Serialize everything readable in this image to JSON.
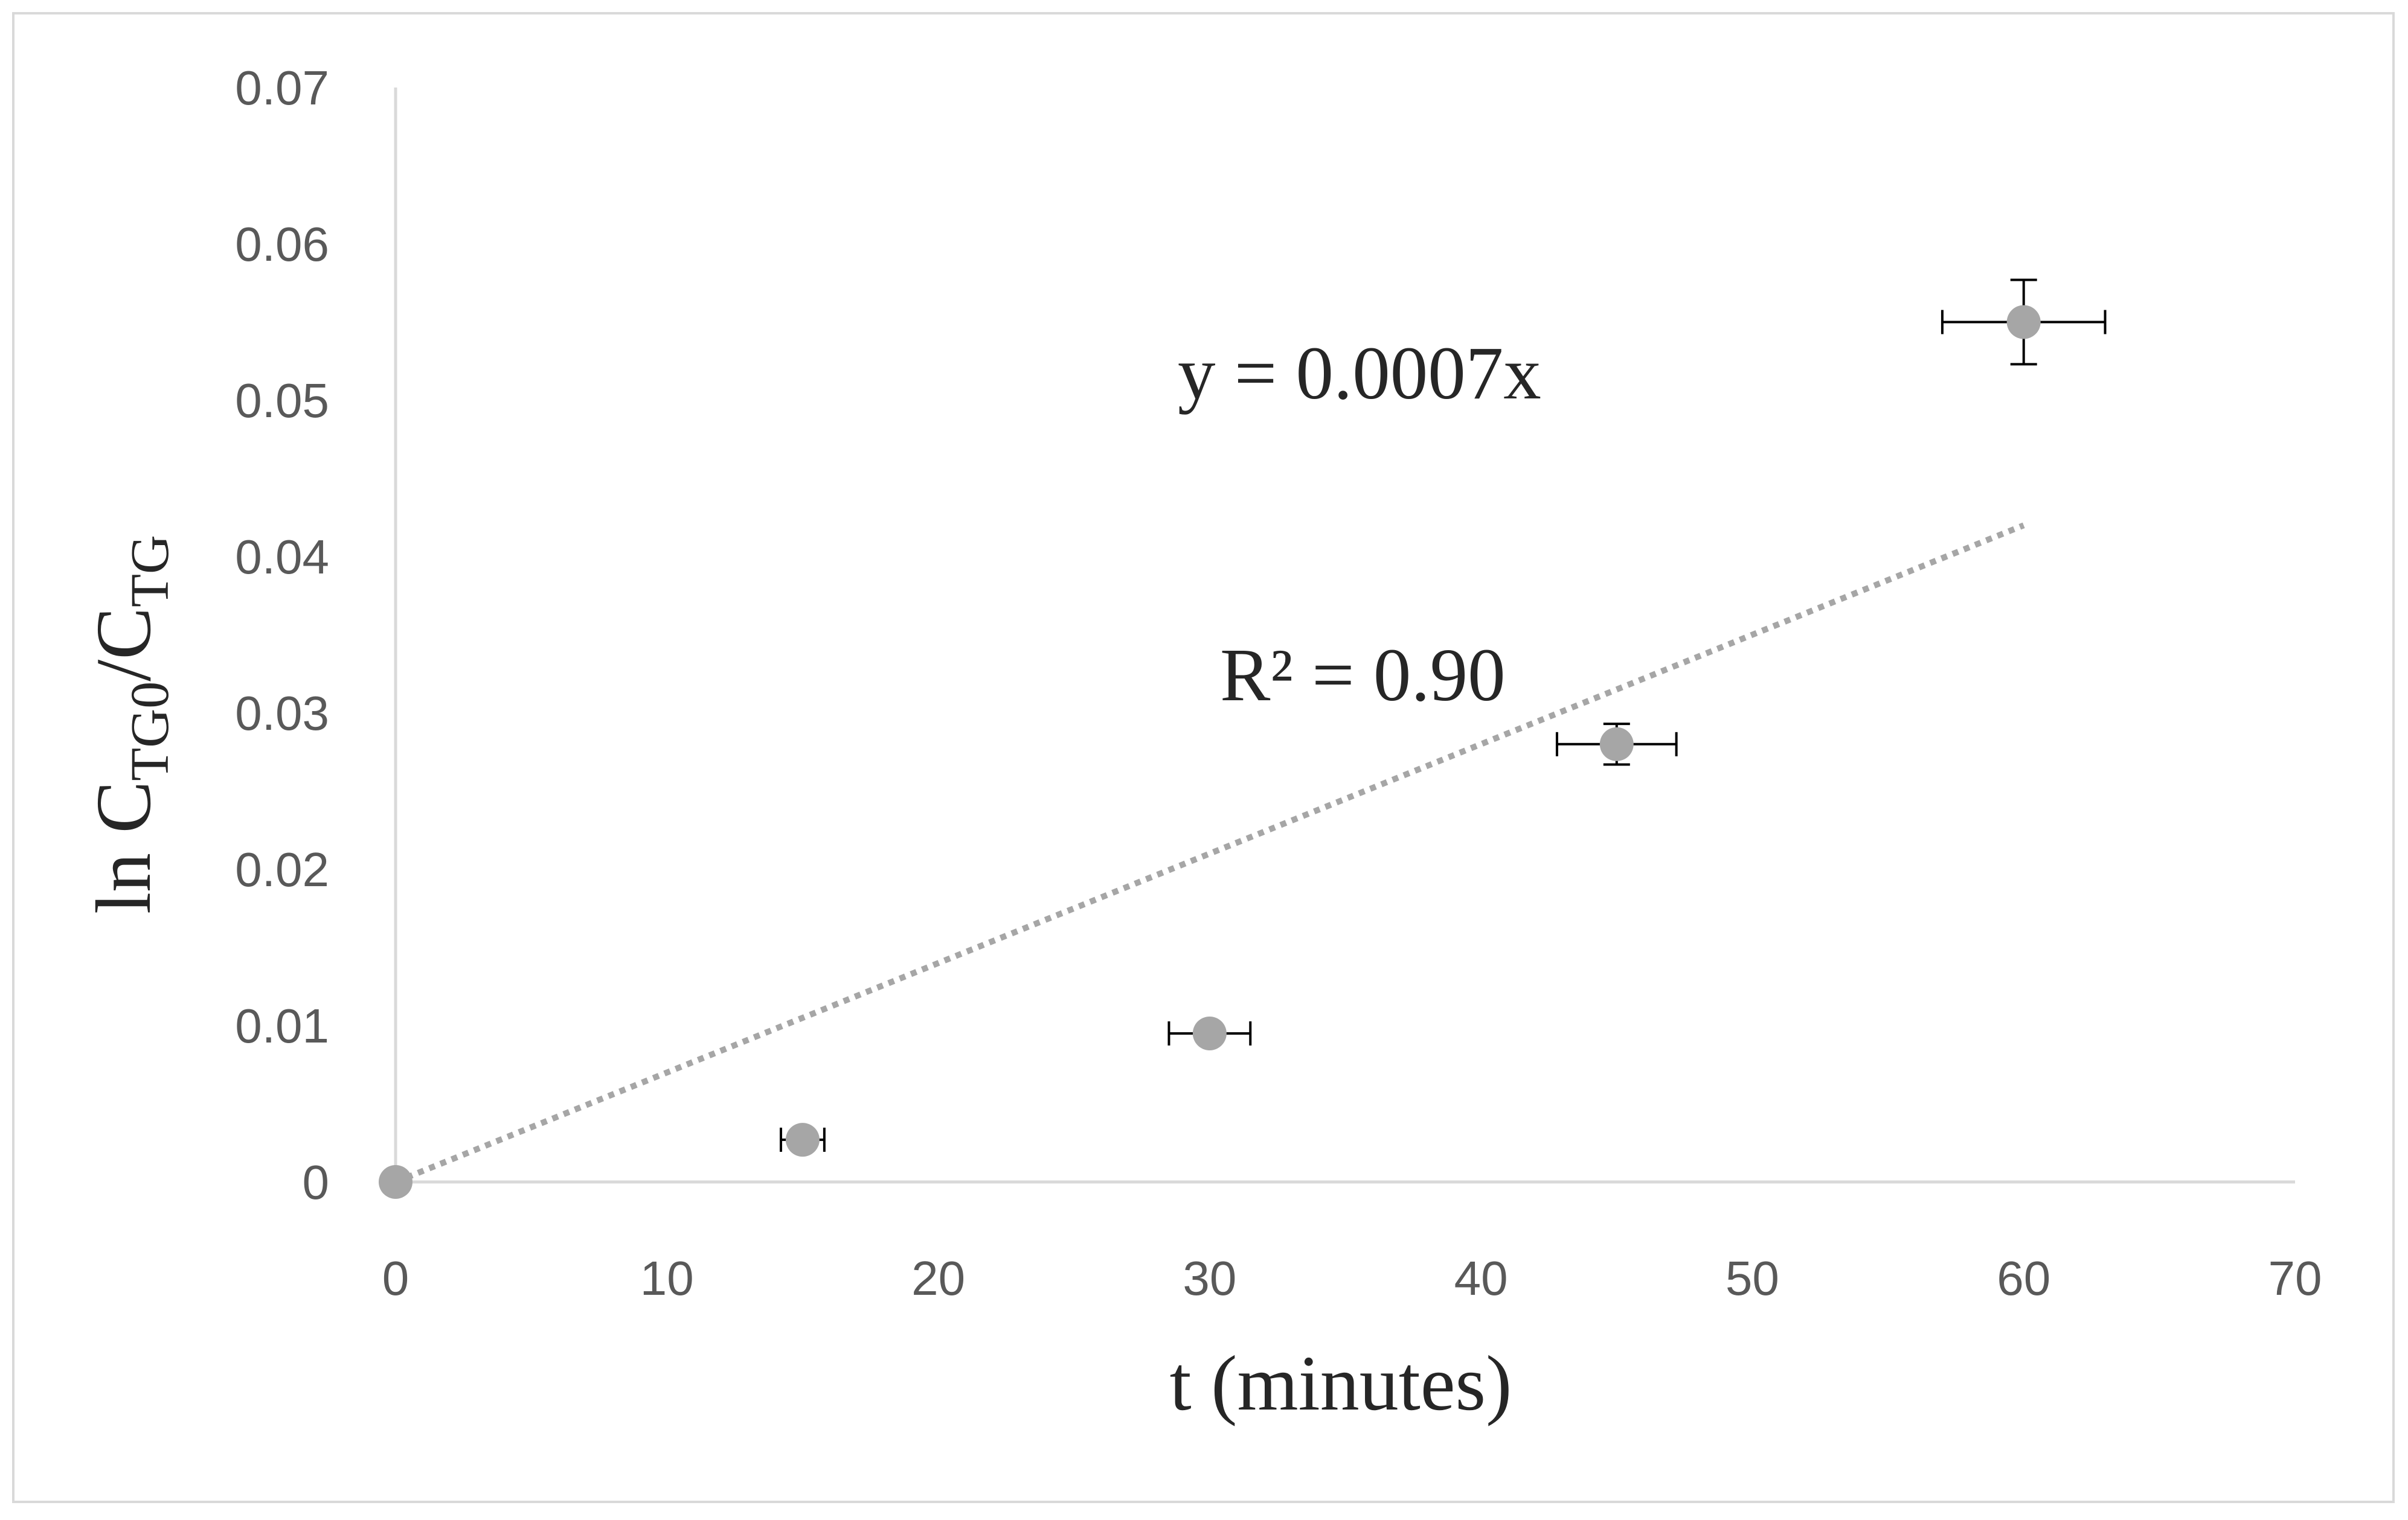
{
  "chart_data": {
    "type": "scatter",
    "x_axis": {
      "title": "t (minutes)",
      "range": [
        0,
        70
      ],
      "ticks": [
        0,
        10,
        20,
        30,
        40,
        50,
        60,
        70
      ],
      "tick_labels": [
        "0",
        "10",
        "20",
        "30",
        "40",
        "50",
        "60",
        "70"
      ]
    },
    "y_axis": {
      "title_main": "ln C",
      "title_sub1": "TG0",
      "title_mid": "/C",
      "title_sub2": "TG",
      "range": [
        0,
        0.07
      ],
      "ticks": [
        0,
        0.01,
        0.02,
        0.03,
        0.04,
        0.05,
        0.06,
        0.07
      ],
      "tick_labels": [
        "0",
        "0.01",
        "0.02",
        "0.03",
        "0.04",
        "0.05",
        "0.06",
        "0.07"
      ]
    },
    "grid": false,
    "legend": "none",
    "series": [
      {
        "color": "#a6a6a6",
        "points": [
          {
            "x": 0,
            "y": 0,
            "x_err": 0,
            "y_err": 0
          },
          {
            "x": 15,
            "y": 0.0027,
            "x_err": 0.8,
            "y_err": 0.0003
          },
          {
            "x": 30,
            "y": 0.0095,
            "x_err": 1.5,
            "y_err": 0.0004
          },
          {
            "x": 45,
            "y": 0.028,
            "x_err": 2.2,
            "y_err": 0.0013
          },
          {
            "x": 60,
            "y": 0.055,
            "x_err": 3.0,
            "y_err": 0.0027
          }
        ]
      }
    ],
    "trendline": {
      "type": "linear",
      "slope": 0.0007,
      "intercept": 0,
      "x_range": [
        0,
        60
      ],
      "color": "#a6a6a6",
      "style": "dotted",
      "equation_label": "y = 0.0007x",
      "r2_label": "R² = 0.90"
    }
  }
}
